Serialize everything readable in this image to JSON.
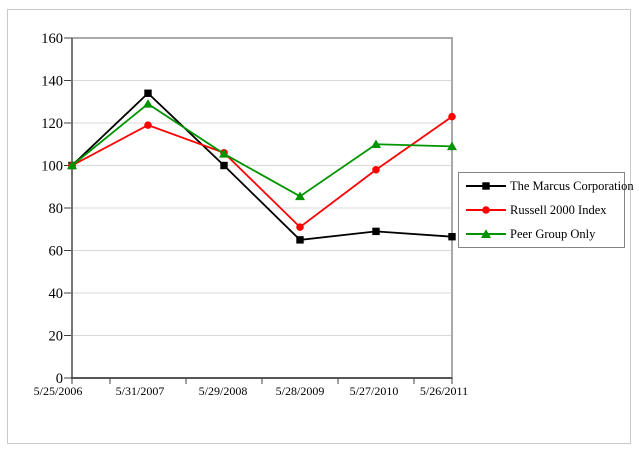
{
  "figure": {
    "background_color": "#ffffff",
    "outer_border_color": "#c9c9c9",
    "plot_border_color": "#a9a9a9",
    "gridline_color": "#d9d9d9",
    "axis_color": "#404040",
    "text_color": "#000000"
  },
  "chart_data": {
    "type": "line",
    "title": "",
    "xlabel": "",
    "ylabel": "",
    "categories": [
      "5/25/2006",
      "5/31/2007",
      "5/29/2008",
      "5/28/2009",
      "5/27/2010",
      "5/26/2011"
    ],
    "series": [
      {
        "name": "The Marcus Corporation",
        "color": "#000000",
        "marker": "square",
        "values": [
          100,
          134,
          100,
          65,
          69,
          66.5
        ]
      },
      {
        "name": "Russell 2000 Index",
        "color": "#ff0000",
        "marker": "circle",
        "values": [
          100,
          119,
          106,
          71,
          98,
          123
        ]
      },
      {
        "name": "Peer Group Only",
        "color": "#009400",
        "marker": "triangle",
        "values": [
          100,
          129,
          105.5,
          85.5,
          110,
          109
        ]
      }
    ],
    "ylim": [
      0,
      160
    ],
    "yticks": [
      0,
      20,
      40,
      60,
      80,
      100,
      120,
      140,
      160
    ],
    "grid": "horizontal",
    "legend_position": "right-middle"
  }
}
